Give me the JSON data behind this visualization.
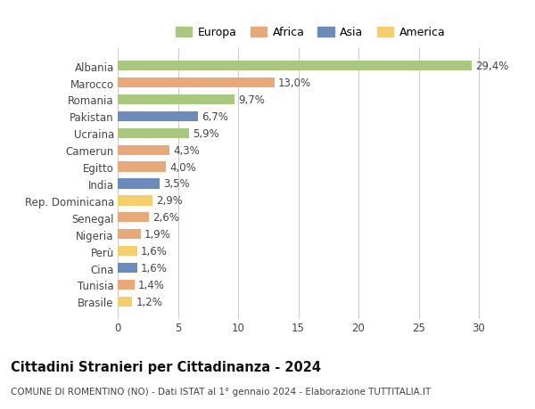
{
  "countries": [
    "Albania",
    "Marocco",
    "Romania",
    "Pakistan",
    "Ucraina",
    "Camerun",
    "Egitto",
    "India",
    "Rep. Dominicana",
    "Senegal",
    "Nigeria",
    "Perù",
    "Cina",
    "Tunisia",
    "Brasile"
  ],
  "values": [
    29.4,
    13.0,
    9.7,
    6.7,
    5.9,
    4.3,
    4.0,
    3.5,
    2.9,
    2.6,
    1.9,
    1.6,
    1.6,
    1.4,
    1.2
  ],
  "labels": [
    "29,4%",
    "13,0%",
    "9,7%",
    "6,7%",
    "5,9%",
    "4,3%",
    "4,0%",
    "3,5%",
    "2,9%",
    "2,6%",
    "1,9%",
    "1,6%",
    "1,6%",
    "1,4%",
    "1,2%"
  ],
  "continents": [
    "Europa",
    "Africa",
    "Europa",
    "Asia",
    "Europa",
    "Africa",
    "Africa",
    "Asia",
    "America",
    "Africa",
    "Africa",
    "America",
    "Asia",
    "Africa",
    "America"
  ],
  "colors": {
    "Europa": "#a8c87e",
    "Africa": "#e8a878",
    "Asia": "#6b8cba",
    "America": "#f5d06a"
  },
  "legend_order": [
    "Europa",
    "Africa",
    "Asia",
    "America"
  ],
  "title": "Cittadini Stranieri per Cittadinanza - 2024",
  "subtitle": "COMUNE DI ROMENTINO (NO) - Dati ISTAT al 1° gennaio 2024 - Elaborazione TUTTITALIA.IT",
  "xlim": [
    0,
    32
  ],
  "xticks": [
    0,
    5,
    10,
    15,
    20,
    25,
    30
  ],
  "bg_color": "#ffffff",
  "grid_color": "#cccccc",
  "bar_height": 0.6,
  "label_fontsize": 8.5,
  "tick_fontsize": 8.5,
  "title_fontsize": 10.5,
  "subtitle_fontsize": 7.5
}
